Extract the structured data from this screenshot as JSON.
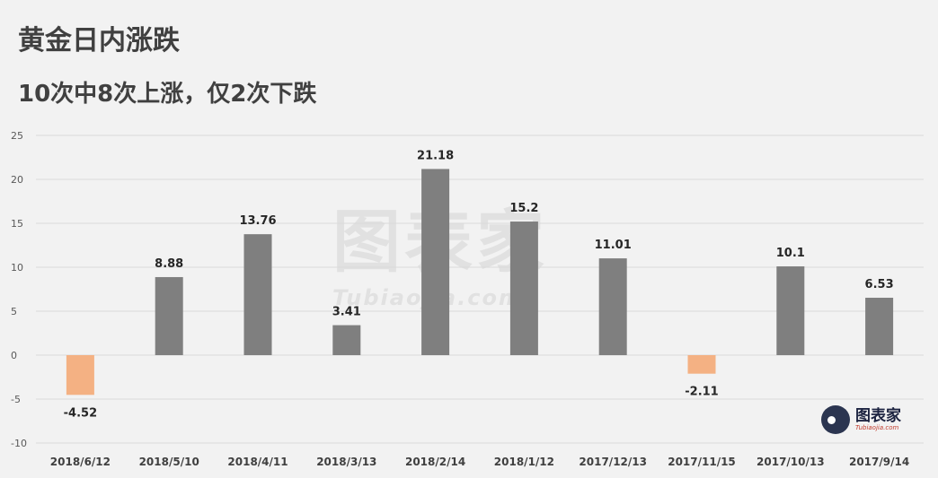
{
  "title": "黄金日内涨跌",
  "subtitle": "10次中8次上涨，仅2次下跌",
  "watermark": {
    "text": "图表家",
    "sub": "Tubiaojia.com"
  },
  "logo": {
    "text": "图表家",
    "sub": "Tubiaojia.com"
  },
  "colors": {
    "positive": "#7f7f7f",
    "negative": "#f4b183",
    "grid": "#d9d9d9",
    "background": "#f2f2f2"
  },
  "chart_data": {
    "type": "bar",
    "categories": [
      "2018/6/12",
      "2018/5/10",
      "2018/4/11",
      "2018/3/13",
      "2018/2/14",
      "2018/1/12",
      "2017/12/13",
      "2017/11/15",
      "2017/10/13",
      "2017/9/14"
    ],
    "values": [
      -4.52,
      8.88,
      13.76,
      3.41,
      21.18,
      15.2,
      11.01,
      -2.11,
      10.1,
      6.53
    ],
    "labels": [
      "-4.52",
      "8.88",
      "13.76",
      "3.41",
      "21.18",
      "15.2",
      "11.01",
      "-2.11",
      "10.1",
      "6.53"
    ],
    "title": "黄金日内涨跌",
    "xlabel": "",
    "ylabel": "",
    "ylim": [
      -10,
      25
    ],
    "yticks": [
      25,
      20,
      15,
      10,
      5,
      0,
      -5,
      -10
    ],
    "grid": true,
    "legend": "none"
  }
}
